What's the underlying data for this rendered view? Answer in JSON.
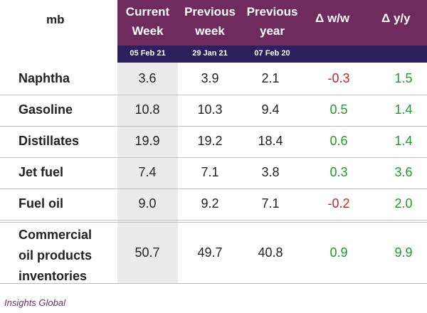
{
  "header": {
    "unit": "mb",
    "columns": [
      {
        "line1": "Current",
        "line2": "Week",
        "date": "05 Feb 21"
      },
      {
        "line1": "Previous",
        "line2": "week",
        "date": "29 Jan 21"
      },
      {
        "line1": "Previous",
        "line2": "year",
        "date": "07 Feb 20"
      }
    ],
    "delta_ww": "Δ w/w",
    "delta_yy": "Δ y/y"
  },
  "rows": [
    {
      "label": "Naphtha",
      "current": "3.6",
      "prev_week": "3.9",
      "prev_year": "2.1",
      "ww": "-0.3",
      "yy": "1.5"
    },
    {
      "label": "Gasoline",
      "current": "10.8",
      "prev_week": "10.3",
      "prev_year": "9.4",
      "ww": "0.5",
      "yy": "1.4"
    },
    {
      "label": "Distillates",
      "current": "19.9",
      "prev_week": "19.2",
      "prev_year": "18.4",
      "ww": "0.6",
      "yy": "1.4"
    },
    {
      "label": "Jet fuel",
      "current": "7.4",
      "prev_week": "7.1",
      "prev_year": "3.8",
      "ww": "0.3",
      "yy": "3.6"
    },
    {
      "label": "Fuel oil",
      "current": "9.0",
      "prev_week": "9.2",
      "prev_year": "7.1",
      "ww": "-0.2",
      "yy": "2.0"
    }
  ],
  "total": {
    "label_lines": [
      "Commercial",
      "oil products",
      "inventories"
    ],
    "current": "50.7",
    "prev_week": "49.7",
    "prev_year": "40.8",
    "ww": "0.9",
    "yy": "9.9"
  },
  "source": "Insights Global",
  "colors": {
    "header_purple": "#6f2a5e",
    "date_bar": "#2b1f5c",
    "positive": "#1d9a2c",
    "negative": "#c0282d"
  }
}
